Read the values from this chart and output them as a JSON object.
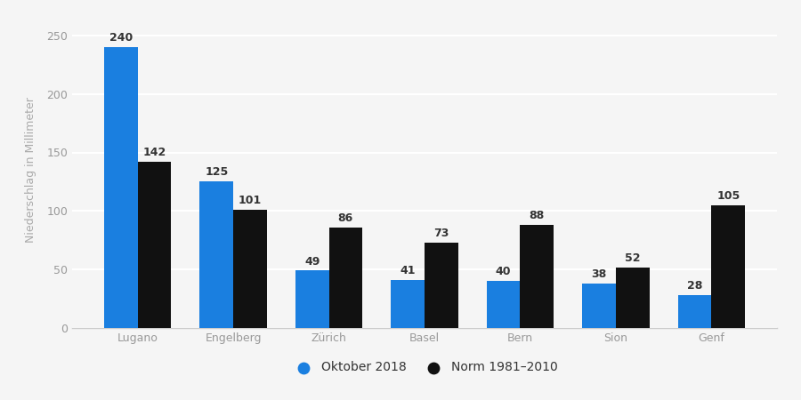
{
  "categories": [
    "Lugano",
    "Engelberg",
    "Zürich",
    "Basel",
    "Bern",
    "Sion",
    "Genf"
  ],
  "oktober_2018": [
    240,
    125,
    49,
    41,
    40,
    38,
    28
  ],
  "norm_1981_2010": [
    142,
    101,
    86,
    73,
    88,
    52,
    105
  ],
  "bar_color_oktober": "#1a7fe0",
  "bar_color_norm": "#111111",
  "ylabel": "Niederschlag in Millimeter",
  "ylim": [
    0,
    270
  ],
  "yticks": [
    0,
    50,
    100,
    150,
    200,
    250
  ],
  "legend_oktober": "Oktober 2018",
  "legend_norm": "Norm 1981–2010",
  "background_color": "#f5f5f5",
  "bar_width": 0.35,
  "label_fontsize": 9,
  "axis_fontsize": 9,
  "legend_fontsize": 10,
  "tick_color": "#aaaaaa",
  "label_color": "#333333"
}
